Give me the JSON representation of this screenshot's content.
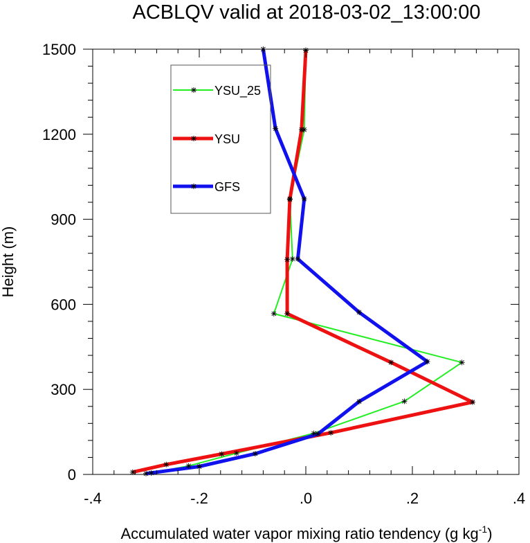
{
  "chart_data": {
    "type": "line",
    "title": "ACBLQV valid at 2018-03-02_13:00:00",
    "xlabel_main": "Accumulated water vapor mixing ratio tendency (g kg",
    "xlabel_sup": "-1",
    "xlabel_close": ")",
    "ylabel": "Height (m)",
    "xlim": [
      -0.4,
      0.4
    ],
    "ylim": [
      0,
      1500
    ],
    "xticks": [
      -0.4,
      -0.2,
      0.0,
      0.2,
      0.4
    ],
    "xtick_labels": [
      "-.4",
      "-.2",
      ".0",
      ".2",
      ".4"
    ],
    "yticks": [
      0,
      300,
      600,
      900,
      1200,
      1500
    ],
    "ytick_labels": [
      "0",
      "300",
      "600",
      "900",
      "1200",
      "1500"
    ],
    "legend_position": "top-left",
    "series": [
      {
        "name": "YSU_25",
        "color": "#22ee22",
        "width": 2,
        "x": [
          -0.29,
          -0.22,
          -0.13,
          0.015,
          0.185,
          0.293,
          -0.06,
          -0.025,
          -0.03,
          -0.003,
          0.0
        ],
        "y": [
          5,
          30,
          75,
          145,
          258,
          395,
          567,
          760,
          972,
          1216,
          1496
        ]
      },
      {
        "name": "YSU",
        "color": "#ee1111",
        "width": 5,
        "x": [
          -0.325,
          -0.262,
          -0.158,
          0.047,
          0.313,
          0.16,
          -0.035,
          -0.035,
          -0.03,
          -0.008,
          0.0
        ],
        "y": [
          8,
          35,
          72,
          147,
          255,
          395,
          567,
          758,
          970,
          1216,
          1496
        ]
      },
      {
        "name": "GFS",
        "color": "#1111ee",
        "width": 5,
        "x": [
          -0.3,
          -0.2,
          -0.095,
          0.023,
          0.1,
          0.228,
          0.1,
          -0.015,
          -0.003,
          -0.057,
          -0.08
        ],
        "y": [
          3,
          28,
          73,
          143,
          257,
          398,
          572,
          760,
          972,
          1220,
          1500
        ]
      }
    ]
  }
}
